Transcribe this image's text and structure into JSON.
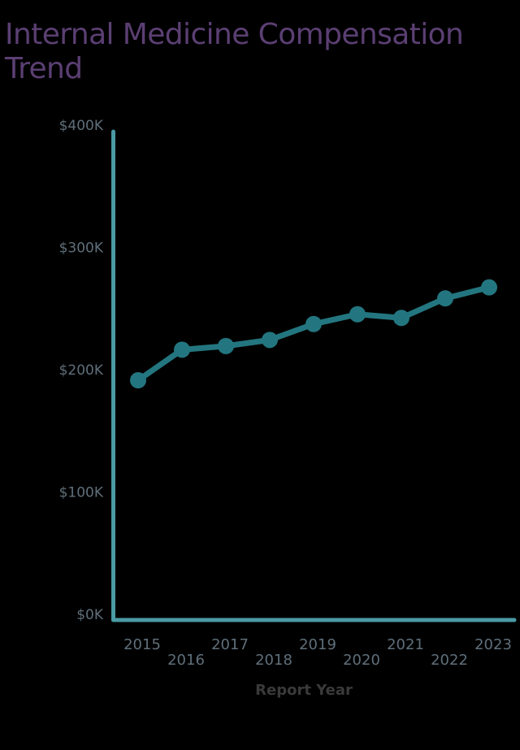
{
  "title": "Internal Medicine Compensation Trend",
  "colors": {
    "title": "#5b3f73",
    "axis": "#4a9aa5",
    "line": "#237680",
    "tick_label": "#5f6f7a",
    "axis_label": "#3a3a3a",
    "background": "#000000"
  },
  "y_ticks": [
    "$400K",
    "$300K",
    "$200K",
    "$100K",
    "$0K"
  ],
  "x_ticks": [
    "2015",
    "2016",
    "2017",
    "2018",
    "2019",
    "2020",
    "2021",
    "2022",
    "2023"
  ],
  "x_axis_label": "Report Year",
  "chart_data": {
    "type": "line",
    "title": "Internal Medicine Compensation Trend",
    "xlabel": "Report Year",
    "ylabel": "",
    "categories": [
      "2015",
      "2016",
      "2017",
      "2018",
      "2019",
      "2020",
      "2021",
      "2022",
      "2023"
    ],
    "series": [
      {
        "name": "Internal Medicine Compensation",
        "values": [
          196000,
          221000,
          224000,
          229000,
          242000,
          250000,
          247000,
          263000,
          272000
        ]
      }
    ],
    "ylim": [
      0,
      400000
    ],
    "y_tick_labels": [
      "$0K",
      "$100K",
      "$200K",
      "$300K",
      "$400K"
    ],
    "grid": false,
    "legend": "none",
    "markers": true
  }
}
